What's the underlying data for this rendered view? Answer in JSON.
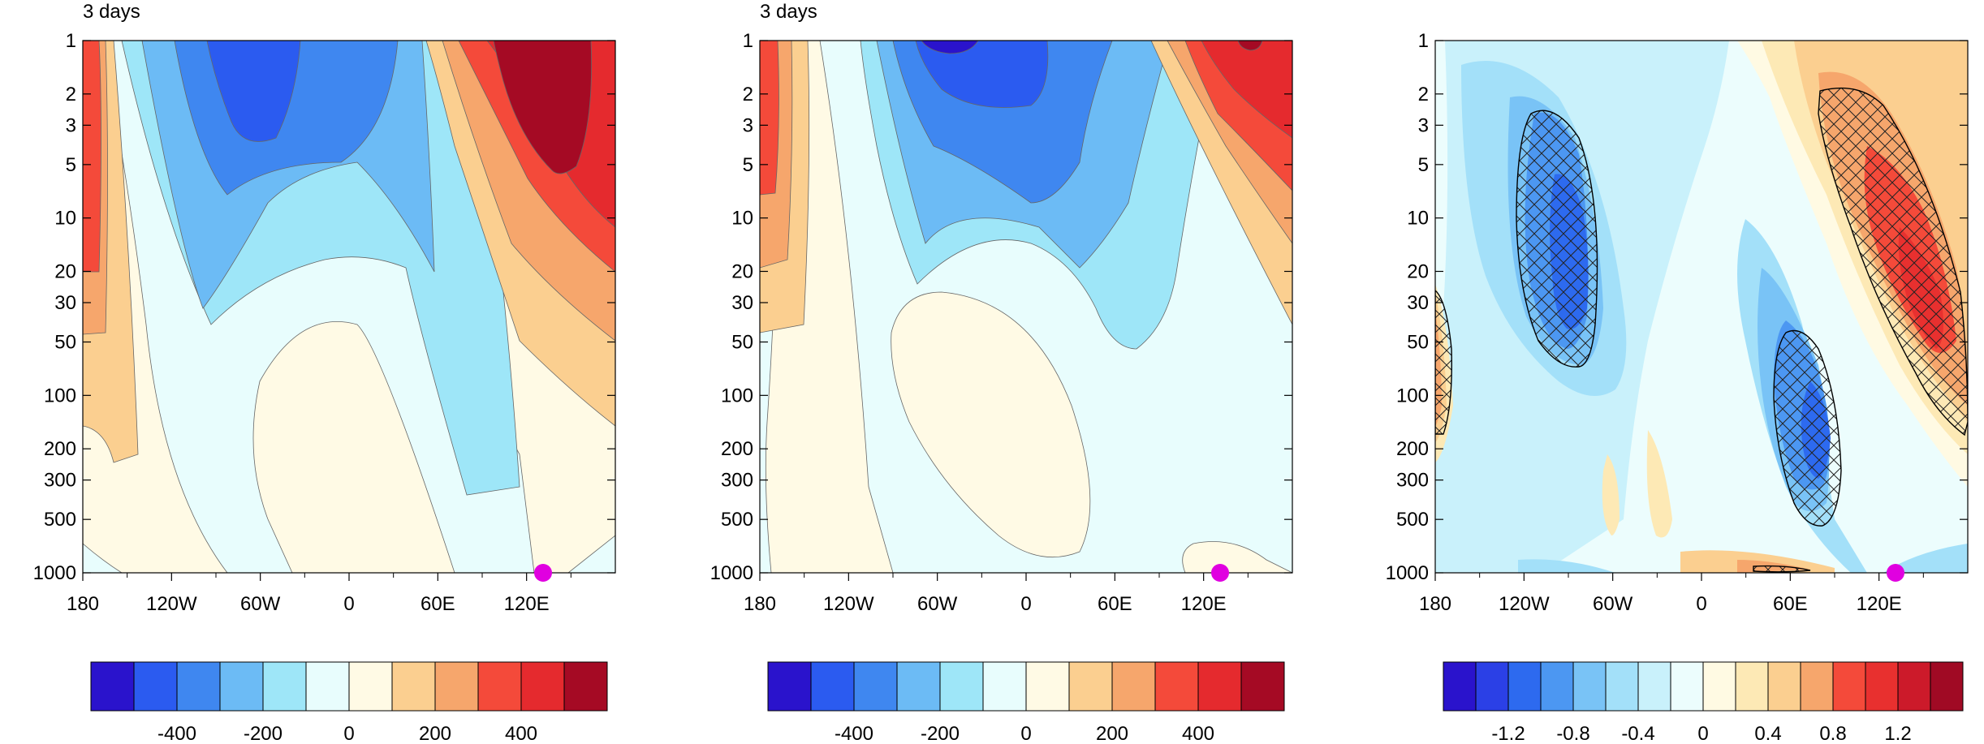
{
  "chart_data": [
    {
      "type": "heatmap",
      "title": "3 days",
      "x": {
        "ticks": [
          "180",
          "120W",
          "60W",
          "0",
          "60E",
          "120E"
        ],
        "range": [
          -180,
          180
        ]
      },
      "y": {
        "scale": "log",
        "reversed": true,
        "ticks": [
          "1",
          "2",
          "3",
          "5",
          "10",
          "20",
          "30",
          "50",
          "100",
          "200",
          "300",
          "500",
          "1000"
        ],
        "range": [
          1,
          1000
        ]
      },
      "colorbar": {
        "levels": [
          -500,
          -400,
          -300,
          -200,
          -100,
          0,
          100,
          200,
          300,
          400,
          500
        ],
        "colors": [
          "#2a13cc",
          "#2b5bf0",
          "#3f87f0",
          "#6cbbf5",
          "#9ee6f8",
          "#e8fdfd",
          "#fffae5",
          "#fbcf90",
          "#f6a66c",
          "#f44a3a",
          "#e52a2e",
          "#a50a24"
        ],
        "tick_labels": [
          "-400",
          "-200",
          "0",
          "200",
          "400"
        ]
      },
      "marker": {
        "lon": 130,
        "p": 1000,
        "color": "#e000e0"
      }
    },
    {
      "type": "heatmap",
      "title": "3 days",
      "x": {
        "ticks": [
          "180",
          "120W",
          "60W",
          "0",
          "60E",
          "120E"
        ],
        "range": [
          -180,
          180
        ]
      },
      "y": {
        "scale": "log",
        "reversed": true,
        "ticks": [
          "1",
          "2",
          "3",
          "5",
          "10",
          "20",
          "30",
          "50",
          "100",
          "200",
          "300",
          "500",
          "1000"
        ],
        "range": [
          1,
          1000
        ]
      },
      "colorbar": {
        "levels": [
          -500,
          -400,
          -300,
          -200,
          -100,
          0,
          100,
          200,
          300,
          400,
          500
        ],
        "colors": [
          "#2a13cc",
          "#2b5bf0",
          "#3f87f0",
          "#6cbbf5",
          "#9ee6f8",
          "#e8fdfd",
          "#fffae5",
          "#fbcf90",
          "#f6a66c",
          "#f44a3a",
          "#e52a2e",
          "#a50a24"
        ],
        "tick_labels": [
          "-400",
          "-200",
          "0",
          "200",
          "400"
        ]
      },
      "marker": {
        "lon": 130,
        "p": 1000,
        "color": "#e000e0"
      }
    },
    {
      "type": "heatmap",
      "title": "",
      "x": {
        "ticks": [
          "180",
          "120W",
          "60W",
          "0",
          "60E",
          "120E"
        ],
        "range": [
          -180,
          180
        ]
      },
      "y": {
        "scale": "log",
        "reversed": true,
        "ticks": [
          "1",
          "2",
          "3",
          "5",
          "10",
          "20",
          "30",
          "50",
          "100",
          "200",
          "300",
          "500",
          "1000"
        ],
        "range": [
          1,
          1000
        ]
      },
      "colorbar": {
        "levels": [
          -1.4,
          -1.2,
          -1.0,
          -0.8,
          -0.6,
          -0.4,
          -0.2,
          0,
          0.2,
          0.4,
          0.6,
          0.8,
          1.0,
          1.2,
          1.4
        ],
        "colors": [
          "#2a13cc",
          "#2b40e6",
          "#2d6aef",
          "#4c97f2",
          "#79c3f6",
          "#a3e0f9",
          "#c9f1fb",
          "#ecfdfd",
          "#fffae3",
          "#fde9b5",
          "#fbcf90",
          "#f6a66c",
          "#f44a3a",
          "#e8302f",
          "#cc1a2a",
          "#a00a24"
        ],
        "tick_labels": [
          "-1.2",
          "-0.8",
          "-0.4",
          "0",
          "0.4",
          "0.8",
          "1.2"
        ]
      },
      "hatched": "significant regions",
      "marker": {
        "lon": 130,
        "p": 1000,
        "color": "#e000e0"
      }
    }
  ]
}
